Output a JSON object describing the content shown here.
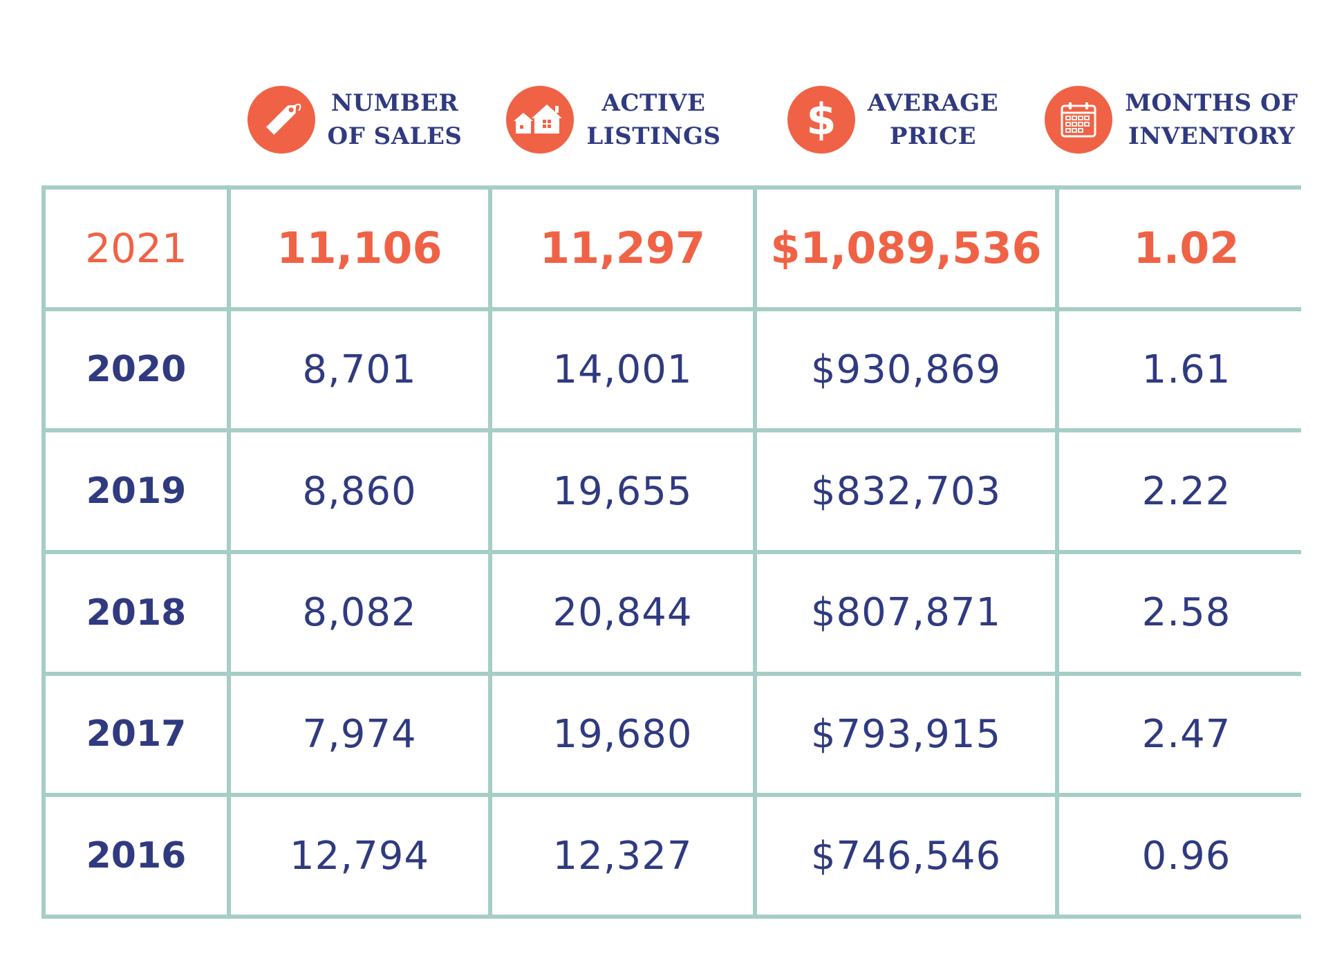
{
  "header": {
    "columns": [
      {
        "line1": "NUMBER",
        "line2": "OF SALES",
        "icon": "price-tag-icon"
      },
      {
        "line1": "ACTIVE",
        "line2": "LISTINGS",
        "icon": "houses-icon"
      },
      {
        "line1": "AVERAGE",
        "line2": "PRICE",
        "icon": "dollar-icon"
      },
      {
        "line1": "MONTHS OF",
        "line2": "INVENTORY",
        "icon": "calendar-icon"
      }
    ]
  },
  "colors": {
    "accent": "#f06245",
    "text": "#2f3a80",
    "grid": "#a6cdc6"
  },
  "rows": [
    {
      "year": "2021",
      "sales": "11,106",
      "listings": "11,297",
      "price": "$1,089,536",
      "months": "1.02",
      "highlight": true
    },
    {
      "year": "2020",
      "sales": "8,701",
      "listings": "14,001",
      "price": "$930,869",
      "months": "1.61"
    },
    {
      "year": "2019",
      "sales": "8,860",
      "listings": "19,655",
      "price": "$832,703",
      "months": "2.22"
    },
    {
      "year": "2018",
      "sales": "8,082",
      "listings": "20,844",
      "price": "$807,871",
      "months": "2.58"
    },
    {
      "year": "2017",
      "sales": "7,974",
      "listings": "19,680",
      "price": "$793,915",
      "months": "2.47"
    },
    {
      "year": "2016",
      "sales": "12,794",
      "listings": "12,327",
      "price": "$746,546",
      "months": "0.96"
    }
  ]
}
